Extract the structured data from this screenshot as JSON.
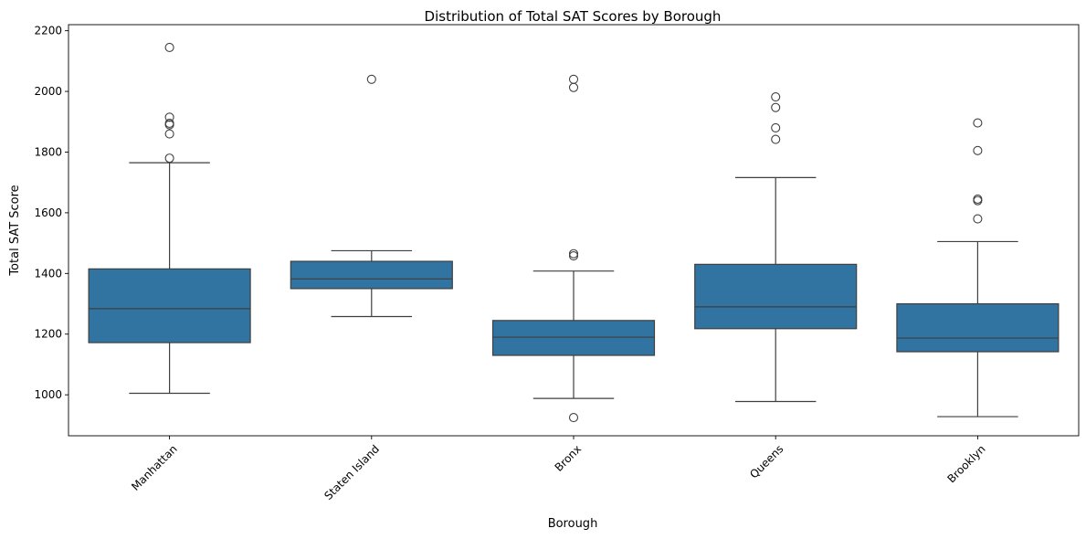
{
  "chart_data": {
    "type": "boxplot",
    "title": "Distribution of Total SAT Scores by Borough",
    "xlabel": "Borough",
    "ylabel": "Total SAT Score",
    "categories": [
      "Manhattan",
      "Staten Island",
      "Bronx",
      "Queens",
      "Brooklyn"
    ],
    "ylim": [
      865,
      2220
    ],
    "yticks": [
      1000,
      1200,
      1400,
      1600,
      1800,
      2000,
      2200
    ],
    "grid": false,
    "box_color": "#3274a1",
    "line_color": "#3f3f3f",
    "boxes": [
      {
        "category": "Manhattan",
        "whisker_low": 1005,
        "q1": 1172,
        "median": 1284,
        "q3": 1415,
        "whisker_high": 1765,
        "outliers": [
          1780,
          1860,
          1890,
          1895,
          1915,
          2145
        ]
      },
      {
        "category": "Staten Island",
        "whisker_low": 1258,
        "q1": 1350,
        "median": 1382,
        "q3": 1440,
        "whisker_high": 1475,
        "outliers": [
          2040
        ]
      },
      {
        "category": "Bronx",
        "whisker_low": 988,
        "q1": 1130,
        "median": 1190,
        "q3": 1245,
        "whisker_high": 1408,
        "outliers": [
          925,
          1458,
          1465,
          2013,
          2040
        ]
      },
      {
        "category": "Queens",
        "whisker_low": 978,
        "q1": 1218,
        "median": 1290,
        "q3": 1430,
        "whisker_high": 1716,
        "outliers": [
          1842,
          1880,
          1947,
          1982
        ]
      },
      {
        "category": "Brooklyn",
        "whisker_low": 928,
        "q1": 1142,
        "median": 1187,
        "q3": 1300,
        "whisker_high": 1505,
        "outliers": [
          1580,
          1640,
          1645,
          1805,
          1896
        ]
      }
    ]
  }
}
